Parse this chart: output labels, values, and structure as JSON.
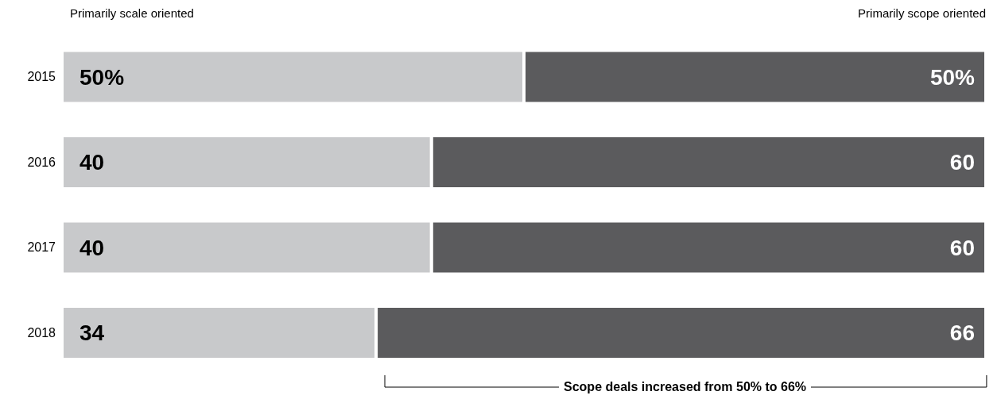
{
  "chart_data": {
    "type": "bar",
    "orientation": "horizontal",
    "stacked": true,
    "legend": "top",
    "categories": [
      "2015",
      "2016",
      "2017",
      "2018"
    ],
    "series": [
      {
        "name": "Primarily scale oriented",
        "color": "#c8c9cb",
        "values": [
          50,
          40,
          40,
          34
        ],
        "value_labels": [
          "50%",
          "40",
          "40",
          "34"
        ]
      },
      {
        "name": "Primarily scope oriented",
        "color": "#5b5b5d",
        "values": [
          50,
          60,
          60,
          66
        ],
        "value_labels": [
          "50%",
          "60",
          "60",
          "66"
        ]
      }
    ],
    "annotations": [
      "Scope deals increased from 50% to 66%"
    ]
  }
}
